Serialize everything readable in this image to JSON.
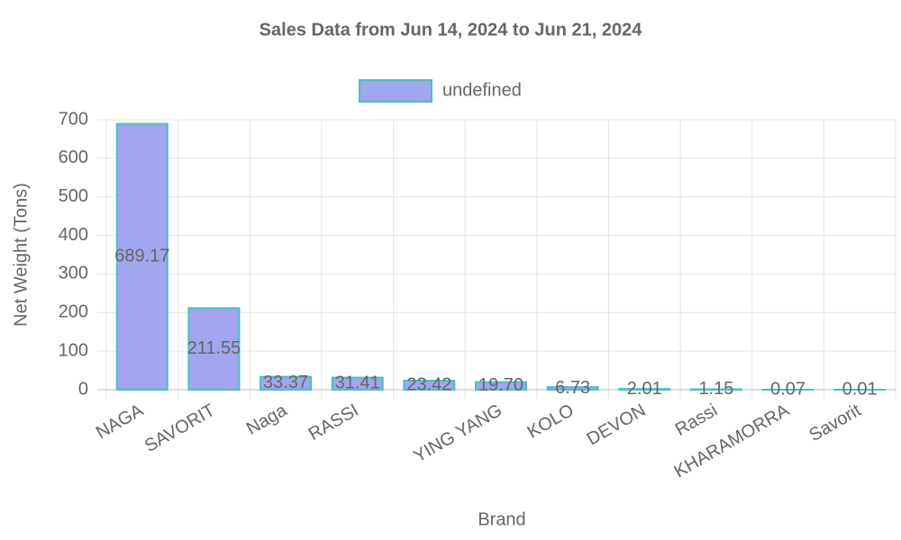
{
  "chart_data": {
    "type": "bar",
    "title": "Sales Data from Jun 14, 2024 to Jun 21, 2024",
    "x_label": "Brand",
    "y_label": "Net Weight (Tons)",
    "categories": [
      "NAGA",
      "SAVORIT",
      "Naga",
      "RASSI",
      null,
      "YING YANG",
      "KOLO",
      "DEVON",
      "Rassi",
      "KHARAMORRA",
      "Savorit"
    ],
    "series": [
      {
        "name": "undefined",
        "color": "#a2a6ee",
        "border_color": "#4bc0c0",
        "values": [
          689.17,
          211.55,
          33.37,
          31.41,
          23.42,
          19.7,
          6.73,
          2.01,
          1.15,
          0.07,
          0.01
        ],
        "value_labels": [
          "689.17",
          "211.55",
          "33.37",
          "31.41",
          "23.42",
          "19.70",
          "6.73",
          "2.01",
          "1.15",
          "0.07",
          "0.01"
        ]
      }
    ],
    "ylim": [
      0,
      700
    ],
    "yticks": [
      0,
      100,
      200,
      300,
      400,
      500,
      600,
      700
    ],
    "grid": true,
    "legend": "top"
  }
}
